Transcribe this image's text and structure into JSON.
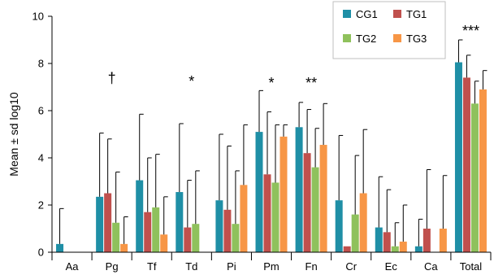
{
  "chart_data": {
    "type": "bar",
    "title": "",
    "xlabel": "",
    "ylabel": "Mean ± sd log10",
    "ylim": [
      0,
      10
    ],
    "yticks": [
      "0",
      "2",
      "4",
      "6",
      "8",
      "10"
    ],
    "grid": false,
    "legend_position": "top-right",
    "categories": [
      "Aa",
      "Pg",
      "Tf",
      "Td",
      "Pi",
      "Pm",
      "Fn",
      "Cr",
      "Ec",
      "Ca",
      "Total"
    ],
    "series": [
      {
        "name": "CG1",
        "color": "#1f8fa6",
        "values": [
          0.35,
          2.35,
          3.05,
          2.55,
          2.2,
          5.1,
          5.3,
          2.2,
          1.05,
          0.25,
          8.05
        ],
        "errors": [
          1.5,
          2.7,
          2.8,
          2.9,
          2.8,
          1.75,
          1.05,
          2.75,
          2.15,
          1.15,
          0.95
        ]
      },
      {
        "name": "TG1",
        "color": "#c0504d",
        "values": [
          0,
          2.5,
          1.7,
          1.05,
          1.8,
          3.3,
          4.2,
          0.25,
          0.85,
          1.0,
          7.4
        ],
        "errors": [
          0,
          2.3,
          2.3,
          2.0,
          2.7,
          2.65,
          1.85,
          0,
          1.8,
          2.5,
          0.95
        ]
      },
      {
        "name": "TG2",
        "color": "#8fc15c",
        "values": [
          0,
          1.25,
          1.9,
          1.2,
          1.2,
          2.95,
          3.6,
          1.6,
          0.25,
          0,
          6.3
        ],
        "errors": [
          0,
          2.15,
          2.25,
          2.25,
          2.25,
          2.45,
          1.65,
          2.5,
          1.0,
          0,
          0.95
        ]
      },
      {
        "name": "TG3",
        "color": "#f79646",
        "values": [
          0,
          0.35,
          0.75,
          0,
          2.85,
          4.9,
          4.55,
          2.5,
          0.45,
          1.0,
          6.9
        ],
        "errors": [
          0,
          1.15,
          1.6,
          0,
          2.55,
          0.5,
          1.75,
          2.7,
          1.55,
          2.25,
          0.8
        ]
      }
    ],
    "annotations": [
      {
        "category": "Pg",
        "text": "†"
      },
      {
        "category": "Td",
        "text": "*"
      },
      {
        "category": "Pm",
        "text": "*"
      },
      {
        "category": "Fn",
        "text": "**"
      },
      {
        "category": "Total",
        "text": "***"
      }
    ]
  }
}
